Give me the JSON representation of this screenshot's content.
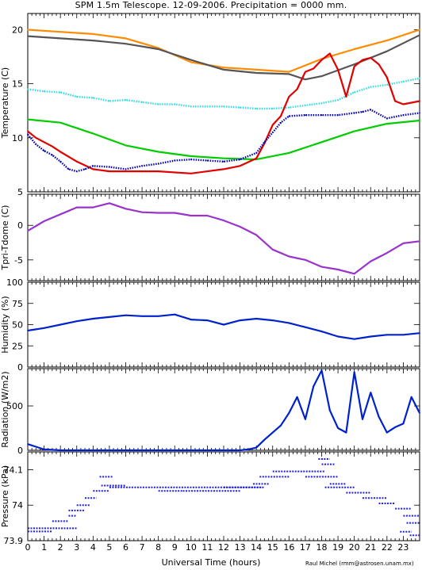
{
  "title": "SPM 1.5m Telescope. 12-09-2006. Precipitation = 0000",
  "title_unit": "mm.",
  "credit": "Raul Michel (rmm@astrosen.unam.mx)",
  "chart_data": [
    {
      "type": "line",
      "ylabel": "Temperature (C)",
      "xlabel": "",
      "xlim": [
        0,
        24
      ],
      "ylim": [
        5,
        21.5
      ],
      "yticks": [
        5,
        10,
        15,
        20
      ],
      "y_tick_labels": [
        "5",
        "10",
        "15",
        "20"
      ],
      "series": [
        {
          "color": "#ff8c00",
          "style": "line",
          "x": [
            0,
            2,
            4,
            6,
            8,
            10,
            12,
            14,
            16,
            17,
            18,
            20,
            22,
            24
          ],
          "y": [
            20,
            19.8,
            19.6,
            19.2,
            18.3,
            17,
            16.5,
            16.3,
            16.1,
            16.7,
            17.3,
            18.2,
            19,
            20
          ]
        },
        {
          "color": "#555555",
          "style": "line",
          "x": [
            0,
            2,
            4,
            6,
            8,
            10,
            12,
            14,
            16,
            17,
            18,
            20,
            22,
            24
          ],
          "y": [
            19.4,
            19.2,
            19,
            18.7,
            18.2,
            17.2,
            16.3,
            16,
            15.9,
            15.4,
            15.7,
            16.8,
            18,
            19.5
          ]
        },
        {
          "color": "#33dddd",
          "style": "dots",
          "x": [
            0,
            1,
            2,
            3,
            4,
            5,
            6,
            7,
            8,
            9,
            10,
            11,
            12,
            13,
            14,
            15,
            16,
            17,
            18,
            19,
            20,
            21,
            22,
            23,
            24
          ],
          "y": [
            14.5,
            14.3,
            14.2,
            13.8,
            13.7,
            13.4,
            13.5,
            13.3,
            13.1,
            13.1,
            12.9,
            12.9,
            12.9,
            12.8,
            12.7,
            12.7,
            12.8,
            13,
            13.2,
            13.5,
            14.2,
            14.7,
            14.9,
            15.2,
            15.5
          ]
        },
        {
          "color": "#00cc00",
          "style": "line",
          "x": [
            0,
            2,
            4,
            6,
            8,
            10,
            12,
            14,
            16,
            18,
            20,
            22,
            24
          ],
          "y": [
            11.7,
            11.4,
            10.4,
            9.3,
            8.7,
            8.3,
            8.1,
            8,
            8.6,
            9.6,
            10.6,
            11.3,
            11.6
          ]
        },
        {
          "color": "#e00000",
          "style": "line",
          "x": [
            0,
            0.5,
            1,
            1.5,
            2,
            3,
            4,
            5,
            6,
            8,
            10,
            12,
            13,
            14,
            14.5,
            15,
            15.5,
            16,
            16.5,
            17,
            17.5,
            18,
            18.5,
            19,
            19.5,
            20,
            20.5,
            21,
            21.5,
            22,
            22.5,
            23,
            24
          ],
          "y": [
            10.6,
            10,
            9.6,
            9.2,
            8.7,
            7.8,
            7.1,
            6.9,
            6.9,
            6.9,
            6.7,
            7.1,
            7.4,
            8.1,
            9.5,
            11.2,
            12,
            13.8,
            14.5,
            16.1,
            16.4,
            17.2,
            17.8,
            16.3,
            13.8,
            16.6,
            17.2,
            17.4,
            16.8,
            15.6,
            13.4,
            13.1,
            13.4
          ]
        },
        {
          "color": "#0000bb",
          "style": "dots",
          "x": [
            0,
            0.5,
            1,
            1.5,
            2,
            2.5,
            3,
            3.5,
            4,
            5,
            6,
            7,
            8,
            9,
            10,
            11,
            12,
            13,
            14,
            14.5,
            15,
            15.5,
            16,
            17,
            18,
            19,
            20,
            20.5,
            21,
            22,
            23,
            24
          ],
          "y": [
            10.3,
            9.4,
            8.8,
            8.4,
            7.8,
            7.1,
            6.9,
            7.1,
            7.4,
            7.3,
            7.1,
            7.4,
            7.6,
            7.9,
            8,
            7.9,
            7.8,
            8,
            8.6,
            9.6,
            10.5,
            11.4,
            12,
            12.1,
            12.1,
            12.1,
            12.3,
            12.4,
            12.6,
            11.8,
            12.1,
            12.3
          ]
        }
      ]
    },
    {
      "type": "line",
      "ylabel": "Tpri-Tdome (C)",
      "xlim": [
        0,
        24
      ],
      "ylim": [
        -8,
        4.5
      ],
      "yticks": [
        -5,
        0
      ],
      "y_tick_labels": [
        "-5",
        "0"
      ],
      "series": [
        {
          "color": "#9933cc",
          "style": "line",
          "x": [
            0,
            1,
            2,
            3,
            4,
            5,
            6,
            7,
            8,
            9,
            10,
            11,
            12,
            13,
            14,
            15,
            16,
            17,
            18,
            19,
            20,
            21,
            22,
            23,
            24
          ],
          "y": [
            -0.8,
            0.6,
            1.6,
            2.6,
            2.6,
            3.2,
            2.4,
            1.9,
            1.8,
            1.8,
            1.4,
            1.4,
            0.7,
            -0.2,
            -1.4,
            -3.5,
            -4.5,
            -5,
            -6,
            -6.4,
            -7,
            -5.2,
            -4,
            -2.6,
            -2.3
          ]
        }
      ]
    },
    {
      "type": "line",
      "ylabel": "Humidity (%)",
      "xlim": [
        0,
        24
      ],
      "ylim": [
        0,
        100
      ],
      "yticks": [
        0,
        25,
        50,
        75,
        100
      ],
      "y_tick_labels": [
        "0",
        "25",
        "50",
        "75",
        "100"
      ],
      "series": [
        {
          "color": "#0022cc",
          "style": "line",
          "x": [
            0,
            1,
            2,
            3,
            4,
            5,
            6,
            7,
            8,
            9,
            10,
            11,
            12,
            13,
            14,
            15,
            16,
            17,
            18,
            19,
            20,
            21,
            22,
            23,
            24
          ],
          "y": [
            43,
            46,
            50,
            54,
            57,
            59,
            61,
            60,
            60,
            62,
            56,
            55,
            50,
            55,
            57,
            55,
            52,
            47,
            42,
            36,
            33,
            36,
            38,
            38,
            40
          ]
        }
      ]
    },
    {
      "type": "line",
      "ylabel": "Radiation (W/m2)",
      "xlim": [
        0,
        24
      ],
      "ylim": [
        0,
        920
      ],
      "yticks": [
        0,
        500
      ],
      "y_tick_labels": [
        "0",
        "500"
      ],
      "series": [
        {
          "color": "#0022cc",
          "style": "line",
          "x": [
            0,
            0.5,
            1,
            2,
            3,
            4,
            5,
            6,
            7,
            8,
            9,
            10,
            11,
            12,
            13,
            13.5,
            14,
            14.5,
            15,
            15.5,
            16,
            16.5,
            17,
            17.5,
            18,
            18.5,
            19,
            19.5,
            20,
            20.5,
            21,
            21.5,
            22,
            22.5,
            23,
            23.5,
            24
          ],
          "y": [
            70,
            40,
            10,
            0,
            0,
            0,
            0,
            0,
            0,
            0,
            0,
            0,
            0,
            0,
            0,
            10,
            30,
            120,
            200,
            280,
            420,
            600,
            350,
            720,
            900,
            450,
            250,
            200,
            880,
            350,
            650,
            380,
            200,
            260,
            300,
            600,
            420
          ]
        }
      ]
    },
    {
      "type": "scatter",
      "ylabel": "Pressure (kPa)",
      "xlim": [
        0,
        24
      ],
      "ylim": [
        73.9,
        74.15
      ],
      "yticks": [
        73.9,
        74,
        74.1
      ],
      "y_tick_labels": [
        "73.9",
        "74",
        "74.1"
      ],
      "series": [
        {
          "color": "#1f1fdd",
          "style": "segments",
          "segments": [
            [
              0,
              1.5,
              73.926
            ],
            [
              0,
              3,
              73.935
            ],
            [
              1.5,
              2.5,
              73.955
            ],
            [
              2.5,
              3,
              73.97
            ],
            [
              2.5,
              3.5,
              73.985
            ],
            [
              3,
              3.8,
              74.0
            ],
            [
              3.5,
              4.2,
              74.02
            ],
            [
              4,
              5,
              74.04
            ],
            [
              4.5,
              6,
              74.055
            ],
            [
              4.4,
              5.2,
              74.08
            ],
            [
              5,
              14.5,
              74.05
            ],
            [
              8,
              9.5,
              74.04
            ],
            [
              9.5,
              13,
              74.04
            ],
            [
              13.8,
              14.8,
              74.06
            ],
            [
              14.2,
              16,
              74.08
            ],
            [
              15,
              18.2,
              74.095
            ],
            [
              18,
              18.8,
              74.115
            ],
            [
              17.8,
              18.5,
              74.13
            ],
            [
              17,
              19,
              74.08
            ],
            [
              18.5,
              19.5,
              74.06
            ],
            [
              18.2,
              20,
              74.05
            ],
            [
              19.5,
              21,
              74.035
            ],
            [
              20.5,
              22,
              74.02
            ],
            [
              21.5,
              22.5,
              74.005
            ],
            [
              22.5,
              23.5,
              73.99
            ],
            [
              23,
              24,
              73.97
            ],
            [
              23.2,
              24,
              73.95
            ],
            [
              22.8,
              23.5,
              73.925
            ],
            [
              23.4,
              24,
              73.915
            ],
            [
              12,
              14.3,
              74.05
            ]
          ]
        }
      ]
    }
  ],
  "x_axis": {
    "label": "Universal Time (hours)",
    "ticks": [
      "0",
      "1",
      "2",
      "3",
      "4",
      "5",
      "6",
      "7",
      "8",
      "9",
      "10",
      "11",
      "12",
      "13",
      "14",
      "15",
      "16",
      "17",
      "18",
      "19",
      "20",
      "21",
      "22",
      "23"
    ]
  }
}
